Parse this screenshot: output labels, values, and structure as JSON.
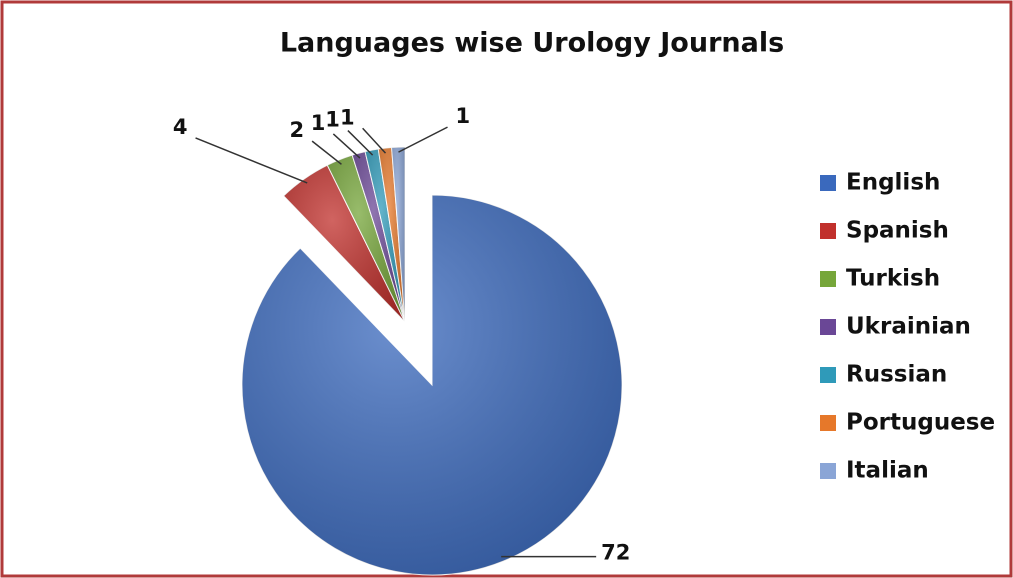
{
  "chart_data": {
    "type": "pie",
    "title": "Languages wise Urology Journals",
    "categories": [
      "English",
      "Spanish",
      "Turkish",
      "Ukrainian",
      "Russian",
      "Portuguese",
      "Italian"
    ],
    "values": [
      72,
      4,
      2,
      1,
      1,
      1,
      1
    ],
    "colors": [
      "#3a69bd",
      "#c1302c",
      "#76a63a",
      "#6a4796",
      "#2f9ab9",
      "#e6782a",
      "#8aa5d6"
    ],
    "legend": "right"
  }
}
